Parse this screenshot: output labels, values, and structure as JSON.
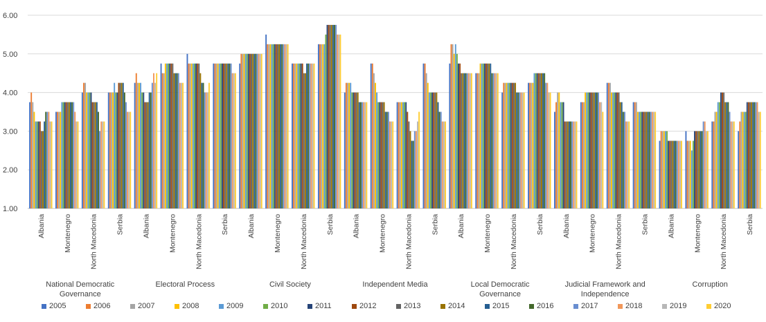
{
  "chart_data": {
    "type": "bar",
    "title": "",
    "xlabel": "",
    "ylabel": "",
    "ylim": [
      1,
      6
    ],
    "yticks": [
      "1.00",
      "2.00",
      "3.00",
      "4.00",
      "5.00",
      "6.00"
    ],
    "grid": true,
    "legend_position": "bottom",
    "groups": [
      {
        "label": "National Democratic Governance",
        "countries": [
          {
            "name": "Albania",
            "values": [
              3.75,
              4.0,
              3.75,
              3.5,
              3.25,
              3.25,
              3.25,
              3.25,
              3.0,
              3.0,
              3.25,
              3.5,
              3.5,
              3.5,
              3.25,
              3.25
            ]
          },
          {
            "name": "Montenegro",
            "values": [
              3.5,
              3.5,
              3.5,
              3.5,
              3.75,
              3.75,
              3.75,
              3.75,
              3.75,
              3.75,
              3.75,
              3.75,
              3.75,
              3.5,
              3.25,
              3.25
            ]
          },
          {
            "name": "North Macedonia",
            "values": [
              4.0,
              4.25,
              4.25,
              4.0,
              4.0,
              4.0,
              4.0,
              3.75,
              3.75,
              3.75,
              3.75,
              3.5,
              3.0,
              3.25,
              3.25,
              3.25
            ]
          },
          {
            "name": "Serbia",
            "values": [
              4.0,
              4.0,
              4.0,
              4.0,
              4.25,
              4.0,
              4.0,
              4.25,
              4.25,
              4.25,
              4.25,
              4.0,
              3.75,
              3.5,
              3.5,
              3.5
            ]
          }
        ]
      },
      {
        "label": "Electoral Process",
        "countries": [
          {
            "name": "Albania",
            "values": [
              4.25,
              4.5,
              4.25,
              4.25,
              4.25,
              4.0,
              4.0,
              3.75,
              3.75,
              3.75,
              4.0,
              4.0,
              4.25,
              4.5,
              4.25,
              4.5
            ]
          },
          {
            "name": "Montenegro",
            "values": [
              4.75,
              4.5,
              4.5,
              4.75,
              4.75,
              4.75,
              4.75,
              4.75,
              4.75,
              4.5,
              4.5,
              4.5,
              4.5,
              4.25,
              4.25,
              4.25
            ]
          },
          {
            "name": "North Macedonia",
            "values": [
              5.0,
              4.75,
              4.75,
              4.75,
              4.75,
              4.75,
              4.75,
              4.75,
              4.75,
              4.5,
              4.25,
              4.25,
              4.0,
              4.0,
              4.0,
              4.25
            ]
          },
          {
            "name": "Serbia",
            "values": [
              4.75,
              4.75,
              4.75,
              4.75,
              4.75,
              4.75,
              4.75,
              4.75,
              4.75,
              4.75,
              4.75,
              4.75,
              4.75,
              4.5,
              4.5,
              4.5
            ]
          }
        ]
      },
      {
        "label": "Civil Society",
        "countries": [
          {
            "name": "Albania",
            "values": [
              4.75,
              5.0,
              5.0,
              5.0,
              5.0,
              5.0,
              5.0,
              5.0,
              5.0,
              5.0,
              5.0,
              5.0,
              5.0,
              5.0,
              5.0,
              5.0
            ]
          },
          {
            "name": "Montenegro",
            "values": [
              5.5,
              5.25,
              5.25,
              5.25,
              5.25,
              5.25,
              5.25,
              5.25,
              5.25,
              5.25,
              5.25,
              5.25,
              5.25,
              5.25,
              5.25,
              5.25
            ]
          },
          {
            "name": "North Macedonia",
            "values": [
              4.75,
              4.75,
              4.75,
              4.75,
              4.75,
              4.75,
              4.75,
              4.75,
              4.5,
              4.5,
              4.75,
              4.75,
              4.75,
              4.75,
              4.75,
              4.75
            ]
          },
          {
            "name": "Serbia",
            "values": [
              5.25,
              5.25,
              5.25,
              5.25,
              5.25,
              5.5,
              5.75,
              5.75,
              5.75,
              5.75,
              5.75,
              5.75,
              5.75,
              5.5,
              5.5,
              5.5
            ]
          }
        ]
      },
      {
        "label": "Independent Media",
        "countries": [
          {
            "name": "Albania",
            "values": [
              4.0,
              4.25,
              4.25,
              4.25,
              4.25,
              4.0,
              4.0,
              4.0,
              4.0,
              4.0,
              3.75,
              3.75,
              3.75,
              3.75,
              3.75,
              3.75
            ]
          },
          {
            "name": "Montenegro",
            "values": [
              4.75,
              4.75,
              4.5,
              4.25,
              4.0,
              3.75,
              3.75,
              3.75,
              3.75,
              3.75,
              3.5,
              3.5,
              3.5,
              3.25,
              3.25,
              3.25
            ]
          },
          {
            "name": "North Macedonia",
            "values": [
              3.75,
              3.75,
              3.75,
              3.75,
              3.75,
              3.75,
              3.75,
              3.5,
              3.25,
              3.0,
              2.75,
              2.75,
              3.0,
              3.0,
              3.25,
              3.5
            ]
          },
          {
            "name": "Serbia",
            "values": [
              4.75,
              4.75,
              4.5,
              4.25,
              4.0,
              4.0,
              4.0,
              4.0,
              4.0,
              4.0,
              3.75,
              3.5,
              3.5,
              3.25,
              3.25,
              3.25
            ]
          }
        ]
      },
      {
        "label": "Local Democratic Governance",
        "countries": [
          {
            "name": "Albania",
            "values": [
              4.75,
              5.25,
              5.25,
              5.0,
              5.25,
              5.0,
              4.75,
              4.75,
              4.5,
              4.5,
              4.5,
              4.5,
              4.5,
              4.5,
              4.5,
              4.5
            ]
          },
          {
            "name": "Montenegro",
            "values": [
              4.5,
              4.5,
              4.5,
              4.75,
              4.75,
              4.75,
              4.75,
              4.75,
              4.75,
              4.75,
              4.75,
              4.5,
              4.5,
              4.5,
              4.5,
              4.5
            ]
          },
          {
            "name": "North Macedonia",
            "values": [
              4.0,
              4.25,
              4.25,
              4.25,
              4.25,
              4.25,
              4.25,
              4.25,
              4.25,
              4.25,
              4.0,
              4.0,
              4.0,
              4.0,
              4.0,
              4.0
            ]
          },
          {
            "name": "Serbia",
            "values": [
              4.25,
              4.25,
              4.25,
              4.25,
              4.5,
              4.5,
              4.5,
              4.5,
              4.5,
              4.5,
              4.5,
              4.5,
              4.25,
              4.25,
              4.0,
              4.0
            ]
          }
        ]
      },
      {
        "label": "Judicial Framework and Independence",
        "countries": [
          {
            "name": "Albania",
            "values": [
              3.5,
              3.75,
              4.0,
              4.0,
              3.75,
              3.75,
              3.75,
              3.25,
              3.25,
              3.25,
              3.25,
              3.25,
              3.25,
              3.25,
              3.25,
              3.25
            ]
          },
          {
            "name": "Montenegro",
            "values": [
              3.75,
              3.75,
              3.75,
              4.0,
              4.0,
              4.0,
              4.0,
              4.0,
              4.0,
              4.0,
              4.0,
              4.0,
              4.0,
              3.75,
              3.75,
              3.5
            ]
          },
          {
            "name": "North Macedonia",
            "values": [
              4.25,
              4.25,
              4.25,
              4.0,
              4.0,
              4.0,
              4.0,
              4.0,
              4.0,
              3.75,
              3.75,
              3.5,
              3.5,
              3.25,
              3.25,
              3.25
            ]
          },
          {
            "name": "Serbia",
            "values": [
              3.75,
              3.75,
              3.75,
              3.5,
              3.5,
              3.5,
              3.5,
              3.5,
              3.5,
              3.5,
              3.5,
              3.5,
              3.5,
              3.5,
              3.5,
              3.5
            ]
          }
        ]
      },
      {
        "label": "Corruption",
        "countries": [
          {
            "name": "Albania",
            "values": [
              2.75,
              3.0,
              3.0,
              3.0,
              3.0,
              3.0,
              2.75,
              2.75,
              2.75,
              2.75,
              2.75,
              2.75,
              2.75,
              2.75,
              2.75,
              2.75
            ]
          },
          {
            "name": "Montenegro",
            "values": [
              3.0,
              2.75,
              2.75,
              2.75,
              2.5,
              2.75,
              3.0,
              3.0,
              3.0,
              3.0,
              3.0,
              3.0,
              3.25,
              3.25,
              3.0,
              3.0
            ]
          },
          {
            "name": "North Macedonia",
            "values": [
              3.25,
              3.25,
              3.5,
              3.5,
              3.75,
              3.75,
              4.0,
              4.0,
              4.0,
              3.75,
              3.75,
              3.75,
              3.5,
              3.25,
              3.25,
              3.25
            ]
          },
          {
            "name": "Serbia",
            "values": [
              3.0,
              3.25,
              3.5,
              3.5,
              3.5,
              3.5,
              3.75,
              3.75,
              3.75,
              3.75,
              3.75,
              3.75,
              3.75,
              3.75,
              3.5,
              3.5
            ]
          }
        ]
      }
    ],
    "series": [
      {
        "name": "2005",
        "color": "#4472C4"
      },
      {
        "name": "2006",
        "color": "#ED7D31"
      },
      {
        "name": "2007",
        "color": "#A5A5A5"
      },
      {
        "name": "2008",
        "color": "#FFC000"
      },
      {
        "name": "2009",
        "color": "#5B9BD5"
      },
      {
        "name": "2010",
        "color": "#70AD47"
      },
      {
        "name": "2011",
        "color": "#264478"
      },
      {
        "name": "2012",
        "color": "#9E480E"
      },
      {
        "name": "2013",
        "color": "#636363"
      },
      {
        "name": "2014",
        "color": "#997300"
      },
      {
        "name": "2015",
        "color": "#255E91"
      },
      {
        "name": "2016",
        "color": "#43682B"
      },
      {
        "name": "2017",
        "color": "#698ED0"
      },
      {
        "name": "2018",
        "color": "#F1975A"
      },
      {
        "name": "2019",
        "color": "#B7B7B7"
      },
      {
        "name": "2020",
        "color": "#FFCD33"
      }
    ]
  }
}
